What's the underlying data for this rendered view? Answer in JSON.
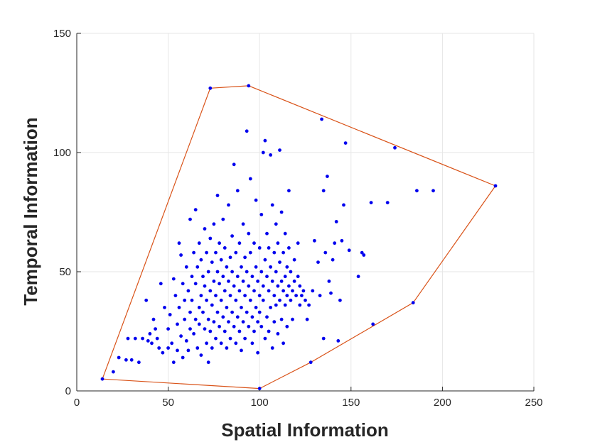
{
  "chart_data": {
    "type": "scatter",
    "title": "",
    "xlabel": "Spatial Information",
    "ylabel": "Temporal Information",
    "xlim": [
      0,
      250
    ],
    "ylim": [
      0,
      150
    ],
    "x_ticks": [
      0,
      50,
      100,
      150,
      200,
      250
    ],
    "y_ticks": [
      0,
      50,
      100,
      150
    ],
    "grid": true,
    "colors": {
      "points": "#0000ee",
      "hull": "#d95319",
      "axes": "#262626",
      "grid": "#e6e6e6"
    },
    "hull": [
      [
        14,
        5
      ],
      [
        73,
        127
      ],
      [
        94,
        128
      ],
      [
        229,
        86
      ],
      [
        184,
        37
      ],
      [
        128,
        12
      ],
      [
        100,
        1
      ],
      [
        14,
        5
      ]
    ],
    "points": [
      [
        14,
        5
      ],
      [
        20,
        8
      ],
      [
        23,
        14
      ],
      [
        27,
        13
      ],
      [
        28,
        22
      ],
      [
        30,
        13
      ],
      [
        32,
        22
      ],
      [
        34,
        12
      ],
      [
        36,
        22
      ],
      [
        38,
        38
      ],
      [
        39,
        21
      ],
      [
        40,
        24
      ],
      [
        41,
        20
      ],
      [
        42,
        30
      ],
      [
        43,
        26
      ],
      [
        44,
        22
      ],
      [
        45,
        18
      ],
      [
        46,
        45
      ],
      [
        47,
        16
      ],
      [
        48,
        35
      ],
      [
        50,
        26
      ],
      [
        50,
        18
      ],
      [
        51,
        32
      ],
      [
        52,
        20
      ],
      [
        53,
        47
      ],
      [
        53,
        12
      ],
      [
        54,
        40
      ],
      [
        55,
        28
      ],
      [
        55,
        17
      ],
      [
        56,
        35
      ],
      [
        56,
        62
      ],
      [
        57,
        23
      ],
      [
        57,
        57
      ],
      [
        58,
        45
      ],
      [
        58,
        14
      ],
      [
        59,
        38
      ],
      [
        59,
        30
      ],
      [
        60,
        52
      ],
      [
        60,
        21
      ],
      [
        61,
        17
      ],
      [
        61,
        42
      ],
      [
        62,
        33
      ],
      [
        62,
        72
      ],
      [
        62,
        26
      ],
      [
        63,
        48
      ],
      [
        63,
        38
      ],
      [
        64,
        24
      ],
      [
        64,
        58
      ],
      [
        65,
        76
      ],
      [
        65,
        30
      ],
      [
        65,
        45
      ],
      [
        66,
        18
      ],
      [
        66,
        52
      ],
      [
        67,
        35
      ],
      [
        67,
        62
      ],
      [
        67,
        28
      ],
      [
        68,
        40
      ],
      [
        68,
        55
      ],
      [
        68,
        15
      ],
      [
        69,
        48
      ],
      [
        69,
        33
      ],
      [
        70,
        26
      ],
      [
        70,
        68
      ],
      [
        70,
        44
      ],
      [
        71,
        20
      ],
      [
        71,
        38
      ],
      [
        71,
        58
      ],
      [
        72,
        30
      ],
      [
        72,
        50
      ],
      [
        72,
        12
      ],
      [
        73,
        42
      ],
      [
        73,
        25
      ],
      [
        73,
        64
      ],
      [
        74,
        36
      ],
      [
        74,
        54
      ],
      [
        74,
        18
      ],
      [
        75,
        46
      ],
      [
        75,
        29
      ],
      [
        75,
        70
      ],
      [
        76,
        40
      ],
      [
        76,
        22
      ],
      [
        76,
        58
      ],
      [
        77,
        33
      ],
      [
        77,
        50
      ],
      [
        77,
        82
      ],
      [
        78,
        27
      ],
      [
        78,
        45
      ],
      [
        78,
        62
      ],
      [
        79,
        38
      ],
      [
        79,
        20
      ],
      [
        79,
        55
      ],
      [
        80,
        31
      ],
      [
        80,
        48
      ],
      [
        80,
        72
      ],
      [
        81,
        25
      ],
      [
        81,
        42
      ],
      [
        81,
        60
      ],
      [
        82,
        35
      ],
      [
        82,
        18
      ],
      [
        82,
        52
      ],
      [
        83,
        29
      ],
      [
        83,
        46
      ],
      [
        83,
        78
      ],
      [
        84,
        40
      ],
      [
        84,
        22
      ],
      [
        84,
        56
      ],
      [
        85,
        33
      ],
      [
        85,
        50
      ],
      [
        85,
        65
      ],
      [
        86,
        27
      ],
      [
        86,
        44
      ],
      [
        86,
        95
      ],
      [
        87,
        38
      ],
      [
        87,
        20
      ],
      [
        87,
        58
      ],
      [
        88,
        31
      ],
      [
        88,
        48
      ],
      [
        88,
        84
      ],
      [
        89,
        25
      ],
      [
        89,
        42
      ],
      [
        89,
        62
      ],
      [
        90,
        35
      ],
      [
        90,
        52
      ],
      [
        90,
        17
      ],
      [
        91,
        29
      ],
      [
        91,
        46
      ],
      [
        91,
        70
      ],
      [
        92,
        40
      ],
      [
        92,
        22
      ],
      [
        92,
        56
      ],
      [
        93,
        33
      ],
      [
        93,
        50
      ],
      [
        93,
        109
      ],
      [
        94,
        27
      ],
      [
        94,
        44
      ],
      [
        94,
        66
      ],
      [
        95,
        38
      ],
      [
        95,
        89
      ],
      [
        95,
        58
      ],
      [
        96,
        31
      ],
      [
        96,
        48
      ],
      [
        96,
        20
      ],
      [
        97,
        42
      ],
      [
        97,
        25
      ],
      [
        97,
        62
      ],
      [
        98,
        35
      ],
      [
        98,
        52
      ],
      [
        98,
        80
      ],
      [
        99,
        29
      ],
      [
        99,
        46
      ],
      [
        99,
        16
      ],
      [
        100,
        40
      ],
      [
        100,
        60
      ],
      [
        100,
        33
      ],
      [
        101,
        50
      ],
      [
        101,
        27
      ],
      [
        101,
        74
      ],
      [
        102,
        44
      ],
      [
        102,
        100
      ],
      [
        102,
        38
      ],
      [
        103,
        55
      ],
      [
        103,
        22
      ],
      [
        103,
        105
      ],
      [
        104,
        48
      ],
      [
        104,
        31
      ],
      [
        104,
        66
      ],
      [
        105,
        42
      ],
      [
        105,
        25
      ],
      [
        105,
        60
      ],
      [
        106,
        35
      ],
      [
        106,
        99
      ],
      [
        106,
        52
      ],
      [
        107,
        46
      ],
      [
        107,
        18
      ],
      [
        107,
        78
      ],
      [
        108,
        40
      ],
      [
        108,
        58
      ],
      [
        108,
        29
      ],
      [
        109,
        50
      ],
      [
        109,
        36
      ],
      [
        109,
        70
      ],
      [
        110,
        44
      ],
      [
        110,
        24
      ],
      [
        110,
        62
      ],
      [
        111,
        38
      ],
      [
        111,
        101
      ],
      [
        111,
        54
      ],
      [
        112,
        46
      ],
      [
        112,
        30
      ],
      [
        112,
        75
      ],
      [
        113,
        42
      ],
      [
        113,
        58
      ],
      [
        113,
        20
      ],
      [
        114,
        48
      ],
      [
        114,
        36
      ],
      [
        114,
        66
      ],
      [
        115,
        40
      ],
      [
        115,
        52
      ],
      [
        115,
        27
      ],
      [
        116,
        44
      ],
      [
        116,
        60
      ],
      [
        116,
        84
      ],
      [
        117,
        38
      ],
      [
        117,
        50
      ],
      [
        118,
        42
      ],
      [
        118,
        30
      ],
      [
        119,
        55
      ],
      [
        119,
        46
      ],
      [
        120,
        40
      ],
      [
        121,
        48
      ],
      [
        121,
        62
      ],
      [
        122,
        36
      ],
      [
        122,
        44
      ],
      [
        123,
        40
      ],
      [
        124,
        42
      ],
      [
        125,
        38
      ],
      [
        126,
        30
      ],
      [
        127,
        36
      ],
      [
        128,
        12
      ],
      [
        129,
        42
      ],
      [
        130,
        63
      ],
      [
        132,
        54
      ],
      [
        133,
        40
      ],
      [
        134,
        114
      ],
      [
        135,
        22
      ],
      [
        135,
        84
      ],
      [
        136,
        58
      ],
      [
        137,
        90
      ],
      [
        138,
        46
      ],
      [
        139,
        41
      ],
      [
        140,
        55
      ],
      [
        141,
        62
      ],
      [
        142,
        71
      ],
      [
        143,
        21
      ],
      [
        144,
        38
      ],
      [
        145,
        63
      ],
      [
        146,
        78
      ],
      [
        147,
        104
      ],
      [
        149,
        59
      ],
      [
        154,
        48
      ],
      [
        156,
        58
      ],
      [
        157,
        57
      ],
      [
        161,
        79
      ],
      [
        162,
        28
      ],
      [
        170,
        79
      ],
      [
        174,
        102
      ],
      [
        184,
        37
      ],
      [
        186,
        84
      ],
      [
        195,
        84
      ],
      [
        229,
        86
      ],
      [
        100,
        1
      ],
      [
        73,
        127
      ],
      [
        94,
        128
      ]
    ]
  }
}
